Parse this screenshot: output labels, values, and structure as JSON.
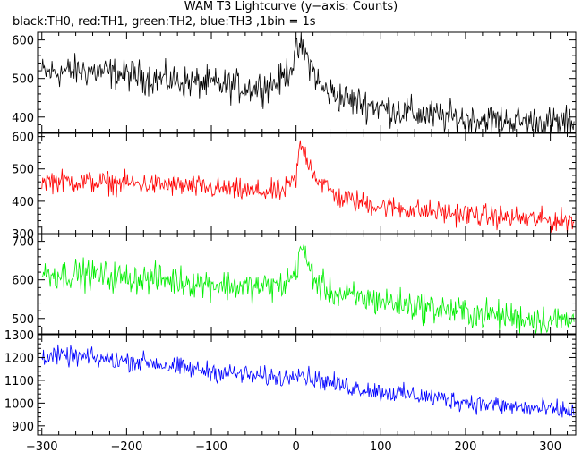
{
  "title": "WAM T3 Lightcurve (y−axis: Counts)",
  "subtitle": "black:TH0, red:TH1, green:TH2, blue:TH3 ,1bin = 1s",
  "chart_data": {
    "type": "line",
    "x_range": [
      -305,
      330
    ],
    "x_ticks": [
      -300,
      -200,
      -100,
      0,
      100,
      200,
      300
    ],
    "x_tick_labels": [
      "−300",
      "−200",
      "−100",
      "0",
      "100",
      "200",
      "300"
    ],
    "panels": [
      {
        "series": "TH0",
        "color": "#000000",
        "ylim": [
          360,
          620
        ],
        "yticks": [
          400,
          500,
          600
        ],
        "ytick_labels": [
          "400",
          "500",
          "600"
        ],
        "top_label": "",
        "profile": [
          [
            -300,
            515
          ],
          [
            -250,
            520
          ],
          [
            -200,
            510
          ],
          [
            -150,
            495
          ],
          [
            -100,
            485
          ],
          [
            -50,
            475
          ],
          [
            -20,
            490
          ],
          [
            -5,
            535
          ],
          [
            5,
            585
          ],
          [
            15,
            545
          ],
          [
            30,
            475
          ],
          [
            60,
            445
          ],
          [
            100,
            425
          ],
          [
            150,
            405
          ],
          [
            200,
            395
          ],
          [
            250,
            390
          ],
          [
            300,
            385
          ],
          [
            330,
            385
          ]
        ],
        "noise": 30
      },
      {
        "series": "TH1",
        "color": "#ff0000",
        "ylim": [
          300,
          610
        ],
        "yticks": [
          300,
          400,
          500,
          600
        ],
        "ytick_labels": [
          "300",
          "400",
          "500",
          "600"
        ],
        "top_label": "600",
        "profile": [
          [
            -300,
            465
          ],
          [
            -250,
            460
          ],
          [
            -200,
            455
          ],
          [
            -150,
            450
          ],
          [
            -100,
            440
          ],
          [
            -50,
            430
          ],
          [
            -15,
            430
          ],
          [
            0,
            470
          ],
          [
            5,
            575
          ],
          [
            12,
            540
          ],
          [
            25,
            470
          ],
          [
            50,
            410
          ],
          [
            100,
            385
          ],
          [
            150,
            370
          ],
          [
            200,
            360
          ],
          [
            250,
            350
          ],
          [
            300,
            340
          ],
          [
            330,
            340
          ]
        ],
        "noise": 25
      },
      {
        "series": "TH2",
        "color": "#00ee00",
        "ylim": [
          460,
          720
        ],
        "yticks": [
          500,
          600,
          700
        ],
        "ytick_labels": [
          "500",
          "600",
          "700"
        ],
        "top_label": "",
        "profile": [
          [
            -300,
            615
          ],
          [
            -250,
            615
          ],
          [
            -200,
            605
          ],
          [
            -150,
            600
          ],
          [
            -100,
            590
          ],
          [
            -50,
            580
          ],
          [
            -15,
            585
          ],
          [
            0,
            620
          ],
          [
            5,
            690
          ],
          [
            12,
            650
          ],
          [
            25,
            590
          ],
          [
            50,
            560
          ],
          [
            100,
            545
          ],
          [
            150,
            530
          ],
          [
            200,
            515
          ],
          [
            250,
            505
          ],
          [
            300,
            495
          ],
          [
            330,
            495
          ]
        ],
        "noise": 28
      },
      {
        "series": "TH3",
        "color": "#0000ff",
        "ylim": [
          860,
          1300
        ],
        "yticks": [
          900,
          1000,
          1100,
          1200,
          1300
        ],
        "ytick_labels": [
          "900",
          "1000",
          "1100",
          "1200",
          "1300"
        ],
        "top_label": "1300",
        "profile": [
          [
            -300,
            1210
          ],
          [
            -250,
            1200
          ],
          [
            -200,
            1185
          ],
          [
            -170,
            1180
          ],
          [
            -150,
            1160
          ],
          [
            -100,
            1140
          ],
          [
            -50,
            1120
          ],
          [
            -10,
            1110
          ],
          [
            0,
            1150
          ],
          [
            10,
            1120
          ],
          [
            50,
            1080
          ],
          [
            100,
            1050
          ],
          [
            150,
            1030
          ],
          [
            200,
            1005
          ],
          [
            250,
            985
          ],
          [
            300,
            970
          ],
          [
            330,
            965
          ]
        ],
        "noise": 30
      }
    ]
  }
}
